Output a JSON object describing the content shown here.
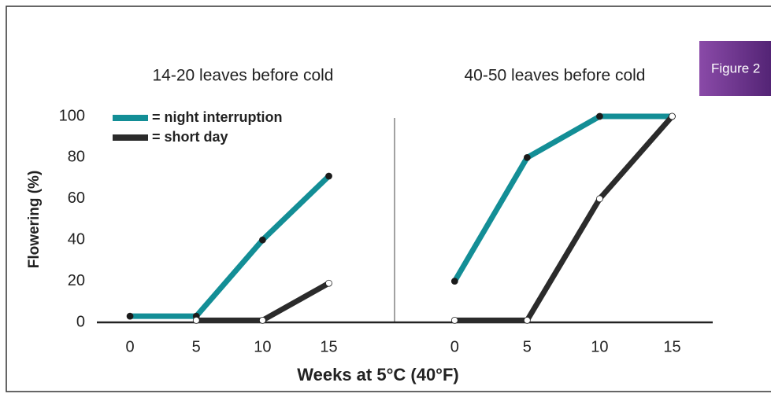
{
  "figure_label": "Figure 2",
  "ylabel": "Flowering (%)",
  "xlabel": "Weeks at 5°C (40°F)",
  "chart_data": [
    {
      "type": "line",
      "title": "14-20 leaves before cold",
      "x": [
        0,
        5,
        10,
        15
      ],
      "xlim": [
        -2.5,
        19.9
      ],
      "xticks": [
        0,
        5,
        10,
        15
      ],
      "ylim": [
        0,
        100
      ],
      "yticks": [
        0,
        20,
        40,
        60,
        80,
        100
      ],
      "series": [
        {
          "name": "= night interruption",
          "color": "#138e96",
          "marker_color": "#1a1a1a",
          "values": [
            3,
            3,
            40,
            71
          ]
        },
        {
          "name": "= short day",
          "color": "#2b2b2b",
          "marker_color": "#ffffff",
          "values": [
            null,
            1,
            1,
            19
          ]
        }
      ]
    },
    {
      "type": "line",
      "title": "40-50 leaves before cold",
      "x": [
        0,
        5,
        10,
        15
      ],
      "xlim": [
        -4.2,
        17.8
      ],
      "xticks": [
        0,
        5,
        10,
        15
      ],
      "ylim": [
        0,
        100
      ],
      "series": [
        {
          "color": "#138e96",
          "marker_color": "#1a1a1a",
          "values": [
            20,
            80,
            100,
            100
          ]
        },
        {
          "color": "#2b2b2b",
          "marker_color": "#ffffff",
          "values": [
            1,
            1,
            60,
            100
          ]
        }
      ]
    }
  ]
}
